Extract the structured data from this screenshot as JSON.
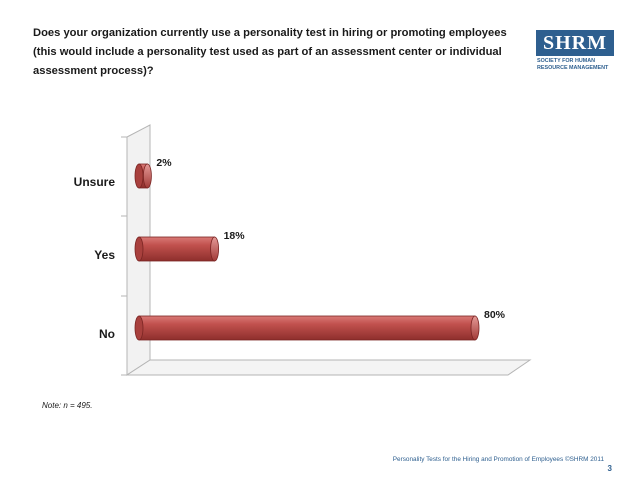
{
  "question": "Does your organization currently use a personality test in hiring or promoting employees (this would include a personality test used as part of an assessment center or individual assessment process)?",
  "logo": {
    "brand": "SHRM",
    "subtitle_line1": "SOCIETY FOR HUMAN",
    "subtitle_line2": "RESOURCE MANAGEMENT"
  },
  "chart_data": {
    "type": "bar",
    "orientation": "horizontal",
    "title": "",
    "categories": [
      "Unsure",
      "Yes",
      "No"
    ],
    "values": [
      2,
      18,
      80
    ],
    "value_labels": [
      "2%",
      "18%",
      "80%"
    ],
    "units": "%",
    "xlim": [
      0,
      100
    ],
    "bar_color": "#c0504d"
  },
  "note": "Note: n = 495.",
  "footer": "Personality Tests for the Hiring and Promotion of Employees ©SHRM 2011",
  "page_number": "3"
}
